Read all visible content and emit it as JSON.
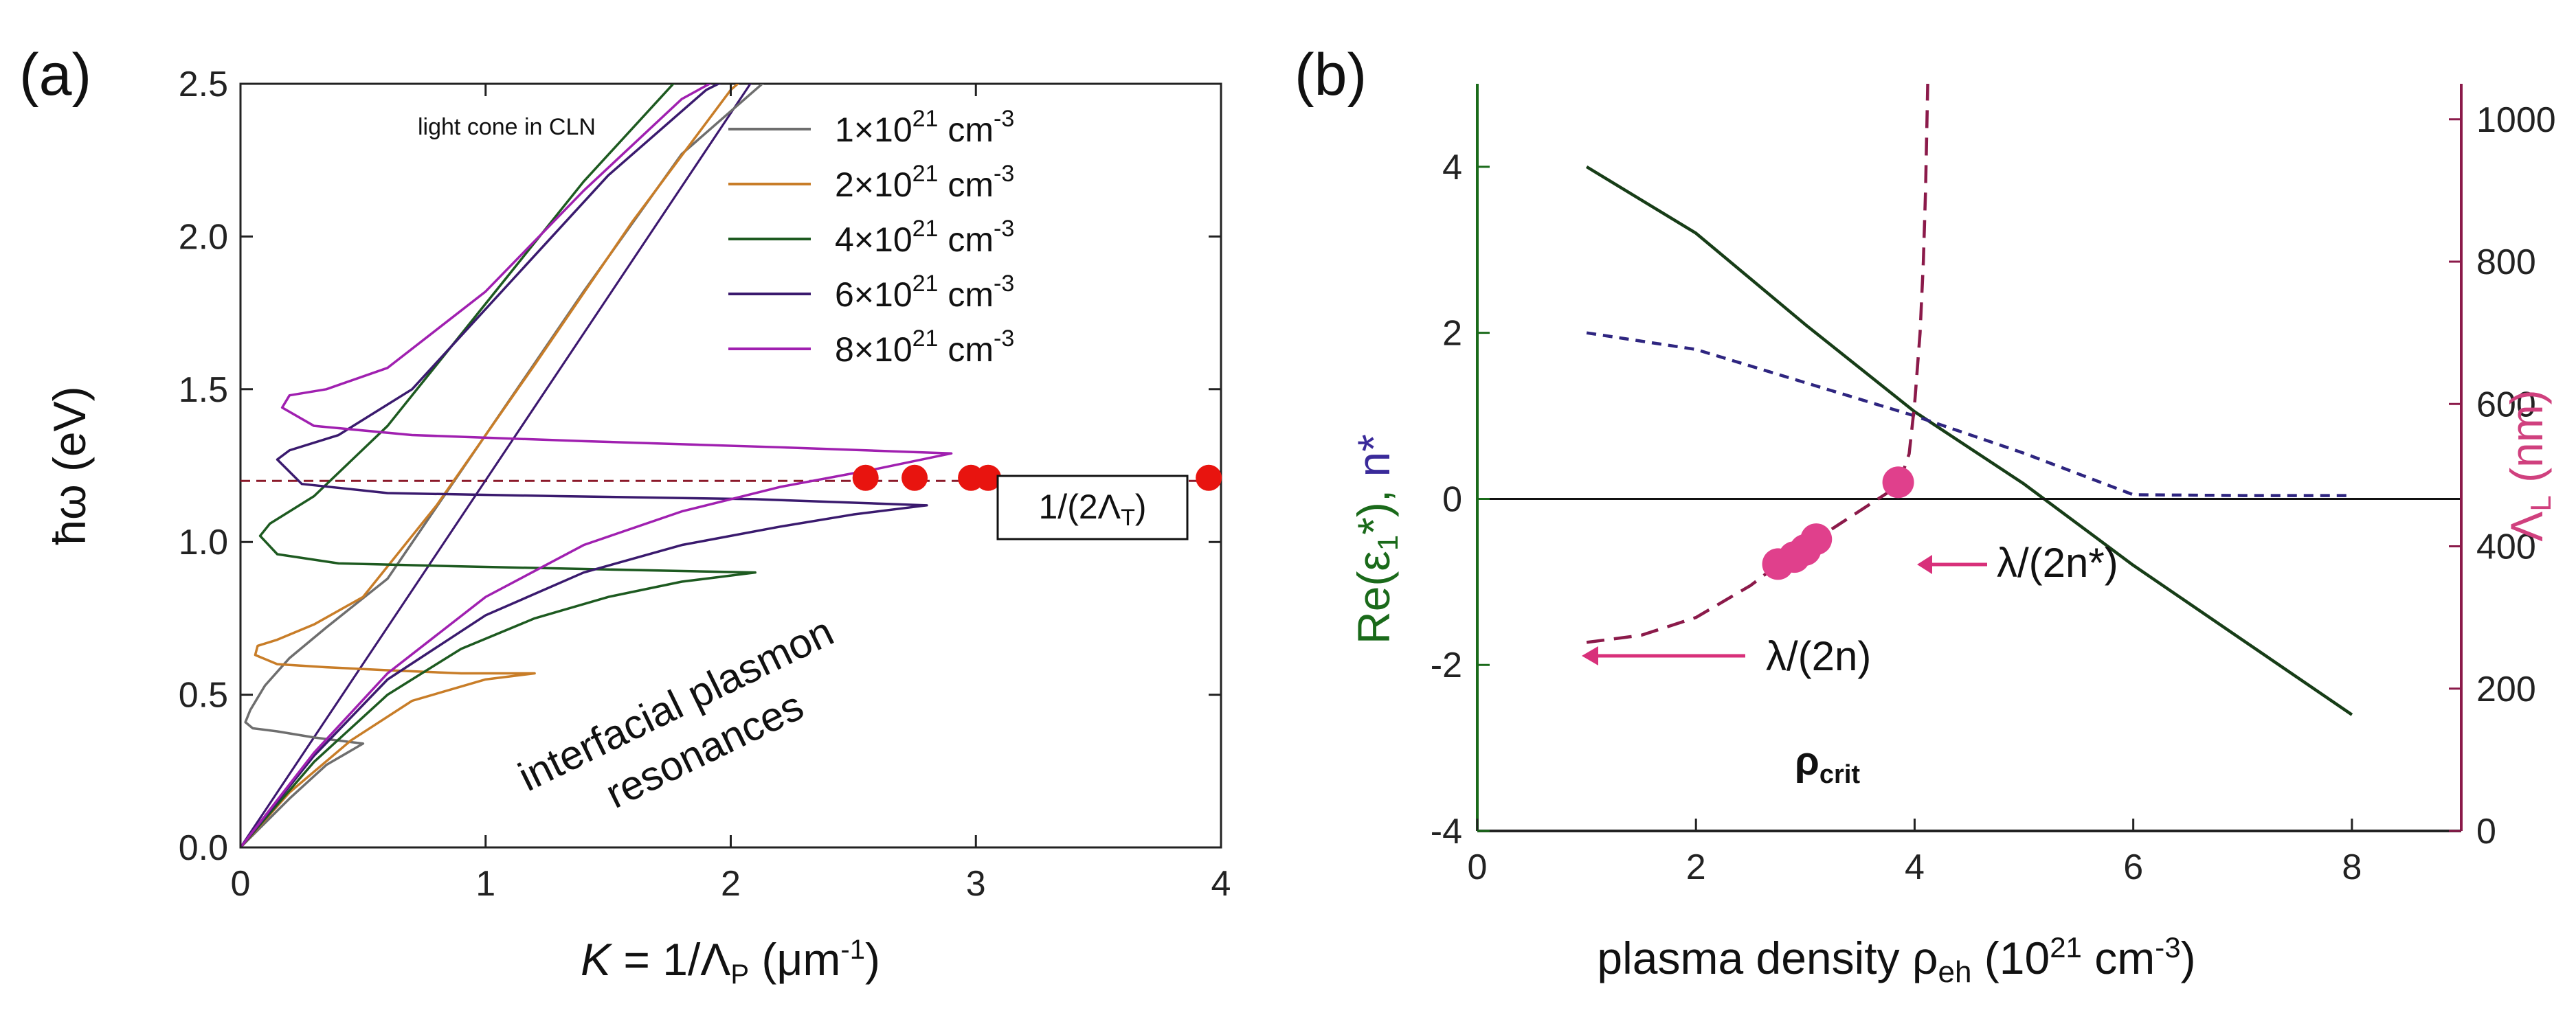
{
  "chart_data": [
    {
      "panel_label": "(a)",
      "type": "line",
      "xlabel": "K = 1/Λ",
      "xlabel_parts": {
        "k_italic": "K",
        "mid": " = 1/Λ",
        "sub": "P",
        "unit": " (μm",
        "sup": "-1",
        "close": ")"
      },
      "ylabel": "ħω (eV)",
      "xlim": [
        0,
        4
      ],
      "ylim": [
        0,
        2.5
      ],
      "xticks": [
        0,
        1,
        2,
        3,
        4
      ],
      "yticks": [
        0.0,
        0.5,
        1.0,
        1.5,
        2.0,
        2.5
      ],
      "xtick_labels": [
        "0",
        "1",
        "2",
        "3",
        "4"
      ],
      "ytick_labels": [
        "0.0",
        "0.5",
        "1.0",
        "1.5",
        "2.0",
        "2.5"
      ],
      "light_cone_label": "light cone in CLN",
      "annotation_text_lines": [
        "interfacial plasmon",
        "resonances"
      ],
      "box_label": "1/(2Λ",
      "box_label_sub": "T",
      "box_label_close": ")",
      "reference_line": {
        "y": 1.2,
        "color": "#8b1a2a",
        "style": "dashed"
      },
      "red_points": {
        "x": [
          2.55,
          2.75,
          2.98,
          3.05,
          3.95
        ],
        "y": [
          1.21,
          1.21,
          1.21,
          1.21,
          1.21
        ],
        "color": "#e8140f"
      },
      "series": [
        {
          "name": "1×10²¹ cm⁻³",
          "legend_main": "1×10",
          "legend_sup": "21",
          "legend_unit": " cm",
          "legend_sup2": "-3",
          "color": "#6e6e6e",
          "x": [
            0.0,
            0.1,
            0.2,
            0.35,
            0.5,
            0.3,
            0.15,
            0.05,
            0.02,
            0.04,
            0.1,
            0.2,
            0.35,
            0.6,
            1.0,
            1.4,
            1.8,
            2.2
          ],
          "y": [
            0.0,
            0.08,
            0.16,
            0.27,
            0.34,
            0.36,
            0.38,
            0.39,
            0.41,
            0.45,
            0.53,
            0.62,
            0.72,
            0.88,
            1.35,
            1.82,
            2.27,
            2.55
          ]
        },
        {
          "name": "2×10²¹ cm⁻³",
          "legend_main": "2×10",
          "legend_sup": "21",
          "legend_unit": " cm",
          "legend_sup2": "-3",
          "color": "#c87d28",
          "x": [
            0.0,
            0.2,
            0.45,
            0.7,
            1.0,
            1.2,
            0.9,
            0.6,
            0.35,
            0.15,
            0.06,
            0.07,
            0.15,
            0.3,
            0.5,
            0.8,
            1.2,
            1.6,
            2.0,
            2.1
          ],
          "y": [
            0.0,
            0.18,
            0.35,
            0.48,
            0.55,
            0.57,
            0.57,
            0.58,
            0.59,
            0.6,
            0.63,
            0.66,
            0.68,
            0.73,
            0.82,
            1.12,
            1.58,
            2.05,
            2.48,
            2.55
          ]
        },
        {
          "name": "4×10²¹ cm⁻³",
          "legend_main": "4×10",
          "legend_sup": "21",
          "legend_unit": " cm",
          "legend_sup2": "-3",
          "color": "#1d5a20",
          "x": [
            0.0,
            0.3,
            0.6,
            0.9,
            1.2,
            1.5,
            1.8,
            2.1,
            1.5,
            0.9,
            0.4,
            0.15,
            0.08,
            0.12,
            0.3,
            0.6,
            1.0,
            1.4,
            1.8,
            2.1
          ],
          "y": [
            0.0,
            0.28,
            0.5,
            0.65,
            0.75,
            0.82,
            0.87,
            0.9,
            0.91,
            0.92,
            0.93,
            0.96,
            1.02,
            1.06,
            1.15,
            1.38,
            1.78,
            2.18,
            2.53,
            2.58
          ]
        },
        {
          "name": "6×10²¹ cm⁻³",
          "legend_main": "6×10",
          "legend_sup": "21",
          "legend_unit": " cm",
          "legend_sup2": "-3",
          "color": "#3a1a6e",
          "x": [
            0.0,
            0.3,
            0.6,
            1.0,
            1.4,
            1.8,
            2.2,
            2.5,
            2.8,
            2.1,
            1.3,
            0.6,
            0.25,
            0.15,
            0.2,
            0.4,
            0.7,
            1.1,
            1.5,
            1.9,
            2.1
          ],
          "y": [
            0.0,
            0.3,
            0.55,
            0.76,
            0.9,
            0.99,
            1.05,
            1.09,
            1.12,
            1.14,
            1.15,
            1.16,
            1.19,
            1.27,
            1.3,
            1.35,
            1.5,
            1.85,
            2.2,
            2.48,
            2.56
          ]
        },
        {
          "name": "8×10²¹ cm⁻³",
          "legend_main": "8×10",
          "legend_sup": "21",
          "legend_unit": " cm",
          "legend_sup2": "-3",
          "color": "#a020b0",
          "x": [
            0.0,
            0.3,
            0.6,
            1.0,
            1.4,
            1.8,
            2.2,
            2.6,
            2.9,
            2.2,
            1.4,
            0.7,
            0.3,
            0.17,
            0.2,
            0.35,
            0.6,
            1.0,
            1.4,
            1.8,
            2.05
          ],
          "y": [
            0.0,
            0.31,
            0.57,
            0.82,
            0.99,
            1.1,
            1.18,
            1.24,
            1.29,
            1.31,
            1.33,
            1.35,
            1.38,
            1.44,
            1.48,
            1.5,
            1.57,
            1.82,
            2.15,
            2.45,
            2.56
          ]
        }
      ],
      "light_cone_lines": [
        {
          "x": [
            0.0,
            2.13
          ],
          "y": [
            0.0,
            2.56
          ],
          "color": "#a020b0"
        },
        {
          "x": [
            0.0,
            2.13
          ],
          "y": [
            0.0,
            2.56
          ],
          "color": "#3a1a6e"
        }
      ]
    },
    {
      "panel_label": "(b)",
      "type": "line",
      "xlabel": "plasma density ρ",
      "xlabel_parts": {
        "main": "plasma density ρ",
        "sub": "eh",
        "unit": " (10",
        "sup": "21",
        "tail": " cm",
        "sup2": "-3",
        "close": ")"
      },
      "ylabel_left_parts": {
        "main": "Re(ε",
        "sub": "1",
        "tail": "*), ",
        "n": "n*"
      },
      "ylabel_right_parts": {
        "main": "Λ",
        "sub": "L",
        "tail": " (nm)"
      },
      "xlim": [
        0,
        9
      ],
      "ylim_left": [
        -4,
        5
      ],
      "ylim_right": [
        0,
        1050
      ],
      "xticks": [
        0,
        2,
        4,
        6,
        8
      ],
      "xtick_labels": [
        "0",
        "2",
        "4",
        "6",
        "8"
      ],
      "yticks_left": [
        -4,
        -2,
        0,
        2,
        4
      ],
      "ytick_labels_left": [
        "-4",
        "-2",
        "0",
        "2",
        "4"
      ],
      "yticks_right": [
        0,
        200,
        400,
        600,
        800,
        1000
      ],
      "ytick_labels_right": [
        "0",
        "200",
        "400",
        "600",
        "800",
        "1000"
      ],
      "left_axis_color": "#1a6a1a",
      "right_axis_color": "#8b1a4a",
      "rho_crit_label": "ρ",
      "rho_crit_sub": "crit",
      "annot_n_star": "λ/(2n*)",
      "annot_n": "λ/(2n)",
      "annot_color": "#d8307a",
      "series": [
        {
          "name": "Re(ε1*)",
          "axis": "left",
          "color": "#173d17",
          "style": "solid",
          "x": [
            1,
            2,
            3,
            4,
            5,
            6,
            7,
            8
          ],
          "y": [
            4.0,
            3.2,
            2.1,
            1.05,
            0.18,
            -0.8,
            -1.7,
            -2.6
          ]
        },
        {
          "name": "n*",
          "axis": "left",
          "color": "#2e2580",
          "style": "dashed",
          "x": [
            1,
            2,
            3,
            4,
            5,
            6,
            7,
            8
          ],
          "y": [
            2.0,
            1.8,
            1.4,
            1.0,
            0.55,
            0.05,
            0.04,
            0.04
          ]
        },
        {
          "name": "zero line",
          "axis": "left",
          "color": "#111111",
          "style": "solid",
          "x": [
            0,
            9
          ],
          "y": [
            0,
            0
          ]
        },
        {
          "name": "ΛL",
          "axis": "right",
          "color": "#8b1a4a",
          "style": "dashed",
          "x": [
            1.0,
            1.5,
            2.0,
            2.5,
            2.8,
            3.0,
            3.3,
            3.6,
            3.85,
            3.95,
            4.0,
            4.05,
            4.08,
            4.1,
            4.12
          ],
          "y": [
            265,
            275,
            300,
            345,
            380,
            400,
            430,
            460,
            485,
            530,
            600,
            700,
            800,
            900,
            1050
          ]
        }
      ],
      "pink_points": {
        "axis": "right",
        "x": [
          2.75,
          2.9,
          3.0,
          3.1,
          3.85
        ],
        "y": [
          375,
          385,
          395,
          410,
          490
        ],
        "color": "#e0408c"
      }
    }
  ]
}
